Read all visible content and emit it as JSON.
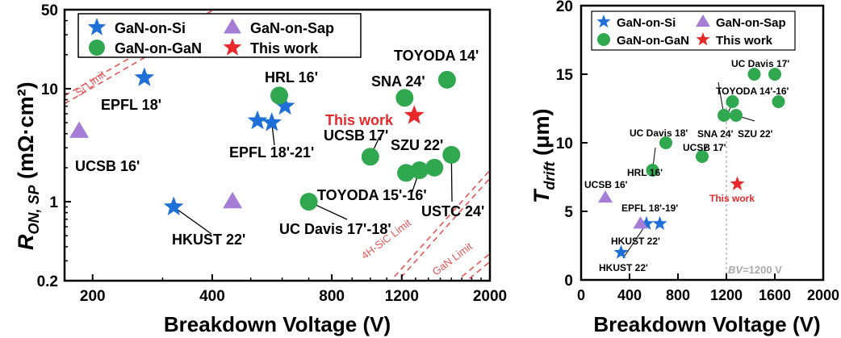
{
  "colors": {
    "gan_on_si": "#1f6fd9",
    "gan_on_gan": "#2fa84f",
    "gan_on_sap": "#a57dd6",
    "this_work": "#e8282a",
    "limit": "#e85454",
    "bv_line": "#aaaaaa"
  },
  "chart_data": [
    {
      "type": "scatter",
      "xscale": "log",
      "yscale": "log",
      "xlim": [
        170,
        2000
      ],
      "ylim": [
        0.2,
        50
      ],
      "xlabel": "Breakdown Voltage (V)",
      "ylabel_main": "R",
      "ylabel_sub": "ON, SP",
      "ylabel_unit": " (mΩ·cm²)",
      "xticks": [
        200,
        400,
        800,
        1200,
        2000
      ],
      "xtick_labels": [
        "200",
        "400",
        "800",
        "1200",
        "2000"
      ],
      "yticks": [
        0.2,
        1,
        10,
        50
      ],
      "ytick_labels": [
        "0.2",
        "1",
        "10",
        "50"
      ],
      "legend": {
        "position": "top-left",
        "entries": [
          {
            "label": "GaN-on-Si",
            "marker": "star",
            "color_key": "gan_on_si"
          },
          {
            "label": "GaN-on-Sap",
            "marker": "triangle",
            "color_key": "gan_on_sap"
          },
          {
            "label": "GaN-on-GaN",
            "marker": "circle",
            "color_key": "gan_on_gan"
          },
          {
            "label": "This work",
            "marker": "star",
            "color_key": "this_work"
          }
        ]
      },
      "series": [
        {
          "name": "GaN-on-Si",
          "marker": "star",
          "points": [
            {
              "x": 270,
              "y": 12.5
            },
            {
              "x": 520,
              "y": 5.2
            },
            {
              "x": 565,
              "y": 5.0
            },
            {
              "x": 610,
              "y": 7.0
            },
            {
              "x": 320,
              "y": 0.9
            }
          ]
        },
        {
          "name": "GaN-on-Sap",
          "marker": "triangle",
          "points": [
            {
              "x": 185,
              "y": 4.2
            },
            {
              "x": 450,
              "y": 1.0
            }
          ]
        },
        {
          "name": "GaN-on-GaN",
          "marker": "circle",
          "points": [
            {
              "x": 590,
              "y": 8.7
            },
            {
              "x": 700,
              "y": 1.0
            },
            {
              "x": 1000,
              "y": 2.5
            },
            {
              "x": 1220,
              "y": 8.3
            },
            {
              "x": 1560,
              "y": 12.0
            },
            {
              "x": 1230,
              "y": 1.8
            },
            {
              "x": 1330,
              "y": 1.9
            },
            {
              "x": 1450,
              "y": 2.0
            },
            {
              "x": 1600,
              "y": 2.6
            }
          ]
        },
        {
          "name": "This work",
          "marker": "star",
          "points": [
            {
              "x": 1290,
              "y": 5.8
            }
          ]
        }
      ],
      "limits": [
        {
          "label": "Si Limit",
          "x1": 170,
          "y1": 8.0,
          "x2": 420,
          "y2": 50
        },
        {
          "label": "4H-SiC Limit",
          "x1": 1150,
          "y1": 0.2,
          "x2": 2000,
          "y2": 1.75
        },
        {
          "label": "GaN Limit",
          "x1": 1700,
          "y1": 0.2,
          "x2": 2000,
          "y2": 0.32
        }
      ],
      "annotations": [
        {
          "text": "EPFL 18'",
          "x": 265,
          "y": 8.2,
          "tx": 0,
          "ty": 0,
          "color": "black"
        },
        {
          "text": "UCSB 16'",
          "x": 182,
          "y": 2.4,
          "color": "black"
        },
        {
          "text": "HRL 16'",
          "x": 570,
          "y": 11.4,
          "color": "black"
        },
        {
          "text": "EPFL 18'-21'",
          "x": 500,
          "y": 3.0,
          "color": "black"
        },
        {
          "text": "HKUST 22'",
          "x": 330,
          "y": 0.52,
          "color": "black"
        },
        {
          "text": "UC Davis 17'-18'",
          "x": 590,
          "y": 0.7,
          "color": "black"
        },
        {
          "text": "TOYODA 15'-16'",
          "x": 900,
          "y": 1.1,
          "color": "black"
        },
        {
          "text": "UCSB 17'",
          "x": 870,
          "y": 3.6,
          "color": "black"
        },
        {
          "text": "SNA 24'",
          "x": 1000,
          "y": 11.2,
          "color": "black"
        },
        {
          "text": "TOYODA 14'",
          "x": 1330,
          "y": 20.0,
          "color": "black"
        },
        {
          "text": "SZU 22'",
          "x": 1140,
          "y": 3.2,
          "color": "black"
        },
        {
          "text": "USTC 24'",
          "x": 1450,
          "y": 0.62,
          "color": "black"
        },
        {
          "text": "This work",
          "x": 950,
          "y": 5.6,
          "color": "red"
        }
      ]
    },
    {
      "type": "scatter",
      "xlim": [
        0,
        2000
      ],
      "ylim": [
        0,
        20
      ],
      "xlabel": "Breakdown Voltage (V)",
      "ylabel_main": "T",
      "ylabel_sub": "drift",
      "ylabel_unit": " (μm)",
      "xticks": [
        0,
        400,
        800,
        1200,
        1600,
        2000
      ],
      "yticks": [
        0,
        5,
        10,
        15,
        20
      ],
      "legend": {
        "position": "top-left",
        "entries": [
          {
            "label": "GaN-on-Si",
            "marker": "star",
            "color_key": "gan_on_si"
          },
          {
            "label": "GaN-on-Sap",
            "marker": "triangle",
            "color_key": "gan_on_sap"
          },
          {
            "label": "GaN-on-GaN",
            "marker": "circle",
            "color_key": "gan_on_gan"
          },
          {
            "label": "This work",
            "marker": "star",
            "color_key": "this_work"
          }
        ]
      },
      "series": [
        {
          "name": "GaN-on-Si",
          "marker": "star",
          "points": [
            {
              "x": 330,
              "y": 2.0
            },
            {
              "x": 540,
              "y": 4.1
            },
            {
              "x": 650,
              "y": 4.1
            }
          ]
        },
        {
          "name": "GaN-on-Sap",
          "marker": "triangle",
          "points": [
            {
              "x": 200,
              "y": 6.0
            },
            {
              "x": 490,
              "y": 4.1
            }
          ]
        },
        {
          "name": "GaN-on-GaN",
          "marker": "circle",
          "points": [
            {
              "x": 590,
              "y": 8.0
            },
            {
              "x": 700,
              "y": 10.0
            },
            {
              "x": 1000,
              "y": 9.0
            },
            {
              "x": 1180,
              "y": 12.0
            },
            {
              "x": 1250,
              "y": 13.0
            },
            {
              "x": 1280,
              "y": 12.0
            },
            {
              "x": 1430,
              "y": 15.0
            },
            {
              "x": 1600,
              "y": 15.0
            },
            {
              "x": 1630,
              "y": 13.0
            }
          ]
        },
        {
          "name": "This work",
          "marker": "star",
          "points": [
            {
              "x": 1290,
              "y": 7.0
            }
          ]
        }
      ],
      "bv_line": {
        "x": 1200,
        "label_prefix": "BV",
        "label_suffix": "=1200 V"
      },
      "annotations": [
        {
          "text": "UCSB 16'",
          "x": 80,
          "y": 6.9,
          "color": "black"
        },
        {
          "text": "EPFL 18'-19'",
          "x": 520,
          "y": 5.4,
          "color": "black"
        },
        {
          "text": "HKUST 22'",
          "x": 360,
          "y": 3.0,
          "color": "black"
        },
        {
          "text": "HKUST 22'",
          "x": 230,
          "y": 0.8,
          "color": "black"
        },
        {
          "text": "HRL 16'",
          "x": 390,
          "y": 8.6,
          "color": "black"
        },
        {
          "text": "UC Davis 18'",
          "x": 500,
          "y": 11.2,
          "color": "black"
        },
        {
          "text": "UCSB 17'",
          "x": 1000,
          "y": 10.0,
          "color": "black"
        },
        {
          "text": "SNA 24'",
          "x": 1160,
          "y": 11.0,
          "color": "black"
        },
        {
          "text": "SZU 22'",
          "x": 1430,
          "y": 11.0,
          "color": "black"
        },
        {
          "text": "TOYODA 14'-16'",
          "x": 1220,
          "y": 14.0,
          "color": "black"
        },
        {
          "text": "UC Davis 17'",
          "x": 1380,
          "y": 16.5,
          "color": "black"
        },
        {
          "text": "This work",
          "x": 1120,
          "y": 5.7,
          "color": "red"
        }
      ]
    }
  ]
}
